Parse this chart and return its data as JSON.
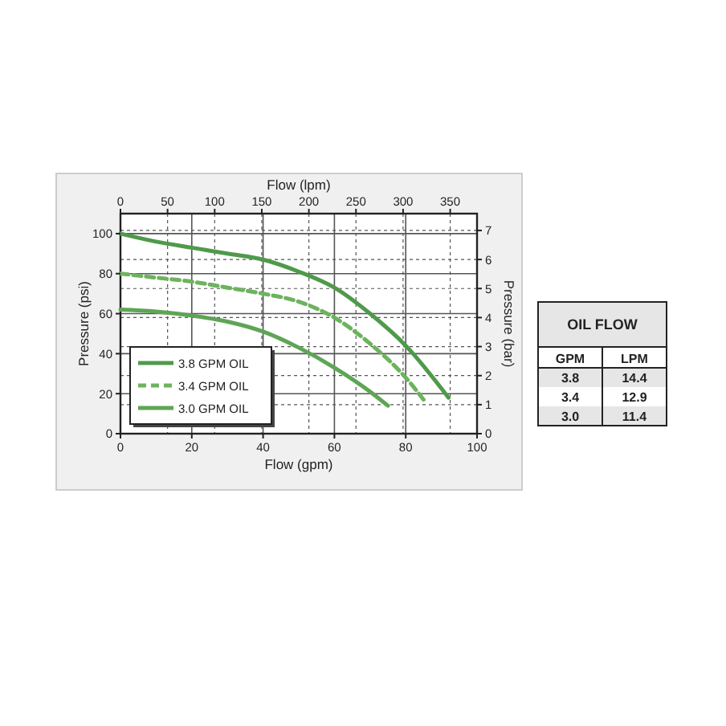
{
  "chart_data": [
    {
      "type": "line",
      "xlabel": "Flow (gpm)",
      "x2label": "Flow (lpm)",
      "ylabel": "Pressure (psi)",
      "y2label": "Pressure (bar)",
      "xlim": [
        0,
        100
      ],
      "xticks": [
        0,
        20,
        40,
        60,
        80,
        100
      ],
      "x2lim": [
        0,
        378.5
      ],
      "x2ticks": [
        0,
        50,
        100,
        150,
        200,
        250,
        300,
        350
      ],
      "ylim": [
        0,
        110
      ],
      "yticks": [
        0,
        20,
        40,
        60,
        80,
        100
      ],
      "y2lim": [
        0,
        7.58
      ],
      "y2ticks": [
        0,
        1,
        2,
        3,
        4,
        5,
        6,
        7
      ],
      "grid": true,
      "legend": "bottom left",
      "marker": "none",
      "series": [
        {
          "name": "3.8 GPM OIL",
          "color": "#4f9a4a",
          "line_style": "solid",
          "x": [
            0,
            10,
            20,
            30,
            40,
            50,
            60,
            70,
            80,
            92
          ],
          "values": [
            100,
            96,
            93,
            90,
            87,
            81,
            73,
            60,
            44,
            18
          ]
        },
        {
          "name": "3.4 GPM OIL",
          "color": "#6db35e",
          "line_style": "dashed",
          "x": [
            0,
            10,
            20,
            30,
            40,
            50,
            60,
            70,
            80,
            85
          ],
          "values": [
            80,
            78,
            76,
            73,
            70,
            66,
            58,
            45,
            28,
            17
          ]
        },
        {
          "name": "3.0 GPM OIL",
          "color": "#5ea555",
          "line_style": "solid",
          "x": [
            0,
            10,
            20,
            30,
            40,
            50,
            60,
            70,
            75
          ],
          "values": [
            62,
            61,
            59,
            56,
            51,
            43,
            33,
            21,
            14
          ]
        }
      ]
    },
    {
      "type": "other",
      "title": "OIL FLOW",
      "categories": [
        "GPM",
        "LPM"
      ],
      "cell_labels": [
        [
          "3.8",
          "14.4"
        ],
        [
          "3.4",
          "12.9"
        ],
        [
          "3.0",
          "11.4"
        ]
      ]
    }
  ]
}
